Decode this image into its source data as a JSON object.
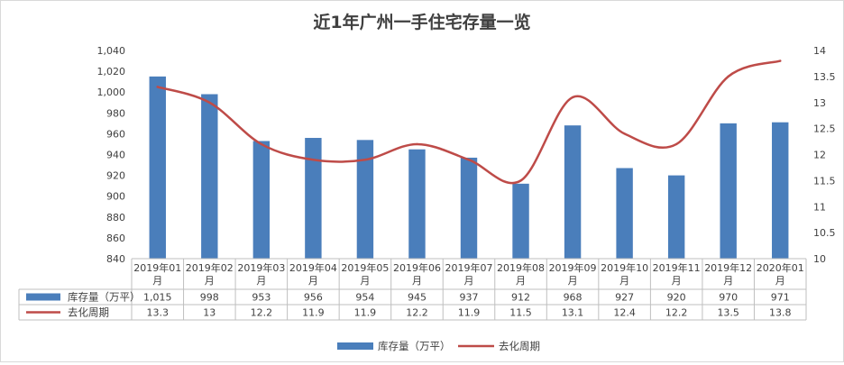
{
  "chart_data": {
    "type": "bar",
    "title": "近1年广州一手住宅存量一览",
    "categories": [
      [
        "2019年01",
        "月"
      ],
      [
        "2019年02",
        "月"
      ],
      [
        "2019年03",
        "月"
      ],
      [
        "2019年04",
        "月"
      ],
      [
        "2019年05",
        "月"
      ],
      [
        "2019年06",
        "月"
      ],
      [
        "2019年07",
        "月"
      ],
      [
        "2019年08",
        "月"
      ],
      [
        "2019年09",
        "月"
      ],
      [
        "2019年10",
        "月"
      ],
      [
        "2019年11",
        "月"
      ],
      [
        "2019年12",
        "月"
      ],
      [
        "2020年01",
        "月"
      ]
    ],
    "series": [
      {
        "name": "库存量（万平）",
        "type": "bar",
        "axis": "left",
        "color": "#4a7ebb",
        "values": [
          1015,
          998,
          953,
          956,
          954,
          945,
          937,
          912,
          968,
          927,
          920,
          970,
          971
        ],
        "labels": [
          "1,015",
          "998",
          "953",
          "956",
          "954",
          "945",
          "937",
          "912",
          "968",
          "927",
          "920",
          "970",
          "971"
        ]
      },
      {
        "name": "去化周期",
        "type": "line",
        "axis": "right",
        "color": "#be4b48",
        "values": [
          13.3,
          13,
          12.2,
          11.9,
          11.9,
          12.2,
          11.9,
          11.5,
          13.1,
          12.4,
          12.2,
          13.5,
          13.8
        ],
        "labels": [
          "13.3",
          "13",
          "12.2",
          "11.9",
          "11.9",
          "12.2",
          "11.9",
          "11.5",
          "13.1",
          "12.4",
          "12.2",
          "13.5",
          "13.8"
        ]
      }
    ],
    "ylim_left": [
      840,
      1040
    ],
    "yticks_left": [
      "840",
      "860",
      "880",
      "900",
      "920",
      "940",
      "960",
      "980",
      "1,000",
      "1,020",
      "1,040"
    ],
    "ylim_right": [
      10,
      14
    ],
    "yticks_right": [
      "10",
      "10.5",
      "11",
      "11.5",
      "12",
      "12.5",
      "13",
      "13.5",
      "14"
    ],
    "grid": false,
    "legend_position": "bottom",
    "data_table": true
  }
}
